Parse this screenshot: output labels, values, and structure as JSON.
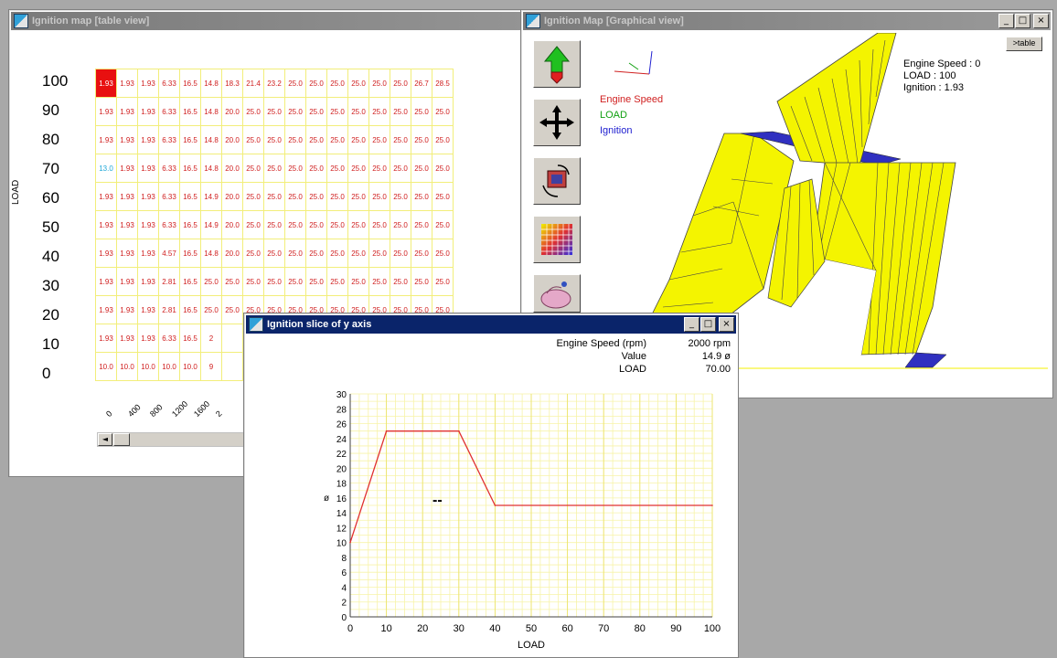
{
  "table_window": {
    "title": "Ignition map [table view]",
    "y_axis_title": "LOAD",
    "y_labels": [
      "100",
      "90",
      "80",
      "70",
      "60",
      "50",
      "40",
      "30",
      "20",
      "10",
      "0"
    ],
    "x_labels": [
      "0",
      "400",
      "800",
      "1200",
      "1600",
      "2"
    ],
    "scroll_arrow": "◄",
    "rows": [
      [
        "1.93",
        "1.93",
        "1.93",
        "6.33",
        "16.5",
        "14.8",
        "18.3",
        "21.4",
        "23.2",
        "25.0",
        "25.0",
        "25.0",
        "25.0",
        "25.0",
        "25.0",
        "26.7",
        "28.5"
      ],
      [
        "1.93",
        "1.93",
        "1.93",
        "6.33",
        "16.5",
        "14.8",
        "20.0",
        "25.0",
        "25.0",
        "25.0",
        "25.0",
        "25.0",
        "25.0",
        "25.0",
        "25.0",
        "25.0",
        "25.0"
      ],
      [
        "1.93",
        "1.93",
        "1.93",
        "6.33",
        "16.5",
        "14.8",
        "20.0",
        "25.0",
        "25.0",
        "25.0",
        "25.0",
        "25.0",
        "25.0",
        "25.0",
        "25.0",
        "25.0",
        "25.0"
      ],
      [
        "13.0",
        "1.93",
        "1.93",
        "6.33",
        "16.5",
        "14.8",
        "20.0",
        "25.0",
        "25.0",
        "25.0",
        "25.0",
        "25.0",
        "25.0",
        "25.0",
        "25.0",
        "25.0",
        "25.0"
      ],
      [
        "1.93",
        "1.93",
        "1.93",
        "6.33",
        "16.5",
        "14.9",
        "20.0",
        "25.0",
        "25.0",
        "25.0",
        "25.0",
        "25.0",
        "25.0",
        "25.0",
        "25.0",
        "25.0",
        "25.0"
      ],
      [
        "1.93",
        "1.93",
        "1.93",
        "6.33",
        "16.5",
        "14.9",
        "20.0",
        "25.0",
        "25.0",
        "25.0",
        "25.0",
        "25.0",
        "25.0",
        "25.0",
        "25.0",
        "25.0",
        "25.0"
      ],
      [
        "1.93",
        "1.93",
        "1.93",
        "4.57",
        "16.5",
        "14.8",
        "20.0",
        "25.0",
        "25.0",
        "25.0",
        "25.0",
        "25.0",
        "25.0",
        "25.0",
        "25.0",
        "25.0",
        "25.0"
      ],
      [
        "1.93",
        "1.93",
        "1.93",
        "2.81",
        "16.5",
        "25.0",
        "25.0",
        "25.0",
        "25.0",
        "25.0",
        "25.0",
        "25.0",
        "25.0",
        "25.0",
        "25.0",
        "25.0",
        "25.0"
      ],
      [
        "1.93",
        "1.93",
        "1.93",
        "2.81",
        "16.5",
        "25.0",
        "25.0",
        "25.0",
        "25.0",
        "25.0",
        "25.0",
        "25.0",
        "25.0",
        "25.0",
        "25.0",
        "25.0",
        "25.0"
      ],
      [
        "1.93",
        "1.93",
        "1.93",
        "6.33",
        "16.5",
        "2",
        "",
        "",
        "",
        "",
        "",
        "",
        "",
        "",
        "",
        "",
        ""
      ],
      [
        "10.0",
        "10.0",
        "10.0",
        "10.0",
        "10.0",
        "9",
        "",
        "",
        "",
        "",
        "",
        "",
        "",
        "",
        "",
        "",
        ""
      ]
    ],
    "highlight_color": "#e81010",
    "cyan_color": "#20a8d8"
  },
  "graph_window": {
    "title": "Ignition Map [Graphical view]",
    "table_button": ">table",
    "legend": [
      {
        "label": "Engine Speed",
        "color": "#d02020"
      },
      {
        "label": "LOAD",
        "color": "#10a010"
      },
      {
        "label": "Ignition",
        "color": "#2020d0"
      }
    ],
    "info": {
      "engine_speed": "Engine Speed : 0",
      "load": "LOAD : 100",
      "ignition": "Ignition : 1.93"
    },
    "tools": [
      "up-arrow-icon",
      "move-cross-icon",
      "rotate-view-icon",
      "color-grid-icon",
      "hand-pan-icon"
    ]
  },
  "slice_window": {
    "title": "Ignition slice of y axis",
    "info_labels": [
      "Engine Speed (rpm)",
      "Value",
      "LOAD"
    ],
    "info_values": [
      "2000 rpm",
      "14.9 ø",
      "70.00"
    ],
    "marker": "--",
    "chart_data": {
      "type": "line",
      "xlabel": "LOAD",
      "ylabel": "ø",
      "xlim": [
        0,
        100
      ],
      "ylim": [
        0,
        30
      ],
      "x_ticks": [
        "0",
        "10",
        "20",
        "30",
        "40",
        "50",
        "60",
        "70",
        "80",
        "90",
        "100"
      ],
      "y_ticks": [
        "0",
        "2",
        "4",
        "6",
        "8",
        "10",
        "12",
        "14",
        "16",
        "18",
        "20",
        "22",
        "24",
        "26",
        "28",
        "30"
      ],
      "series": [
        {
          "x": [
            0,
            10,
            30,
            40,
            100
          ],
          "y": [
            10,
            25,
            25,
            15,
            15
          ],
          "color": "#e03030"
        }
      ],
      "grid": true
    }
  },
  "colors": {
    "surface_yellow": "#f4f400",
    "surface_blue": "#3030c0",
    "grid_yellow": "#f2ee7a"
  }
}
